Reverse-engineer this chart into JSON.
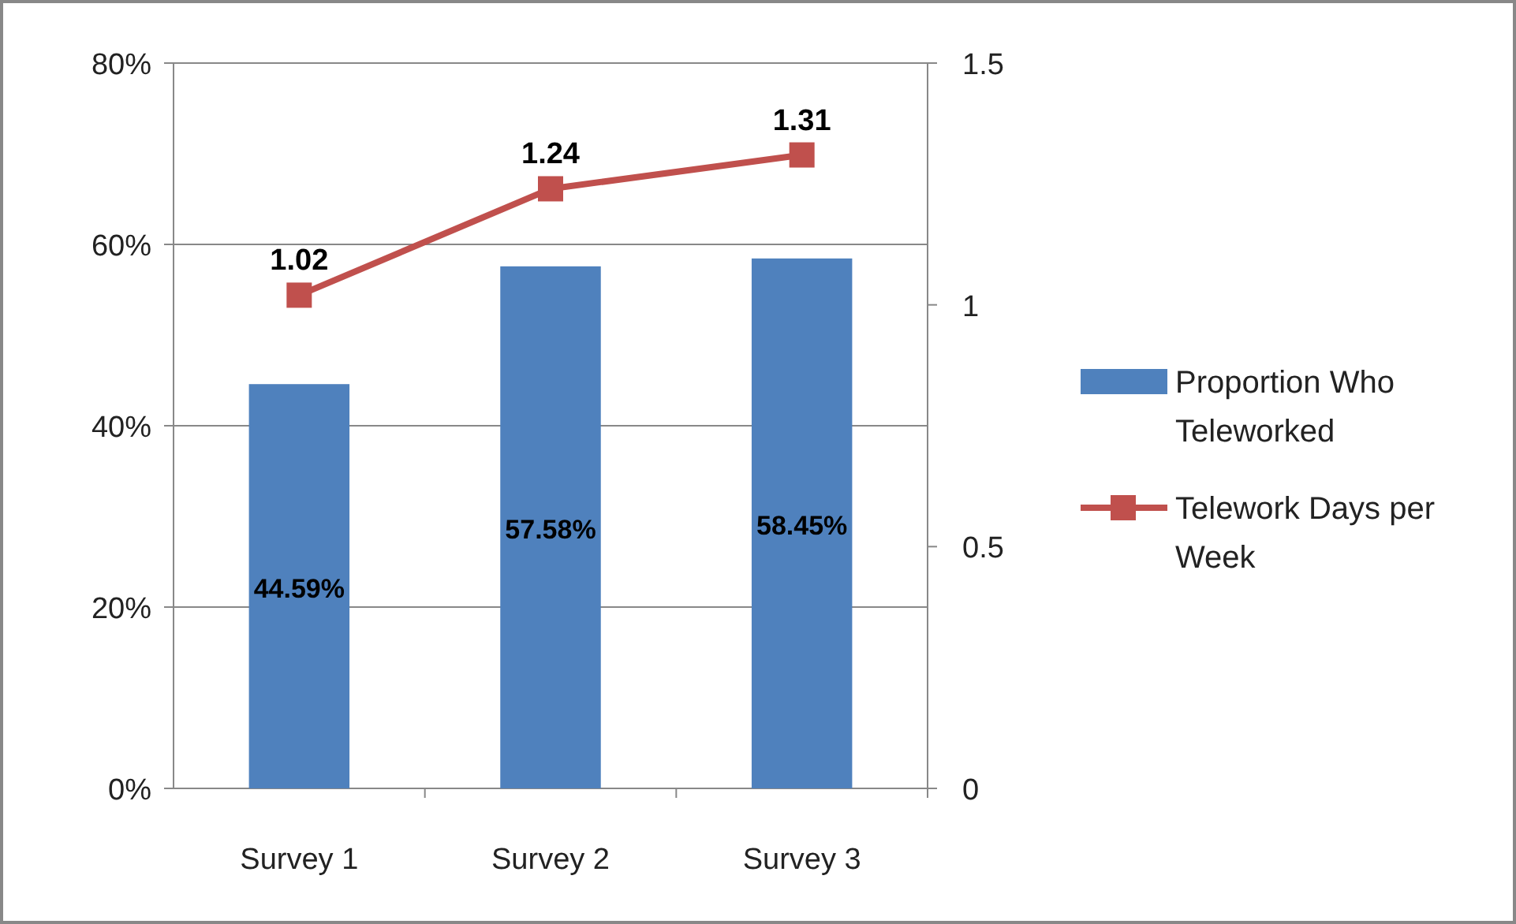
{
  "chart_data": {
    "type": "bar",
    "categories": [
      "Survey 1",
      "Survey 2",
      "Survey 3"
    ],
    "series": [
      {
        "name": "Proportion Who Teleworked",
        "color": "#4f81bd",
        "values": [
          44.59,
          57.58,
          58.45
        ],
        "value_labels": [
          "44.59%",
          "57.58%",
          "58.45%"
        ]
      },
      {
        "name": "Telework Days per Week",
        "type": "line",
        "axis": "y2",
        "color": "#c0504d",
        "marker": "square",
        "values": [
          1.02,
          1.24,
          1.31
        ],
        "value_labels": [
          "1.02",
          "1.24",
          "1.31"
        ]
      }
    ],
    "ylim": [
      0,
      80
    ],
    "yticks": [
      {
        "value": 0,
        "label": "0%"
      },
      {
        "value": 20,
        "label": "20%"
      },
      {
        "value": 40,
        "label": "40%"
      },
      {
        "value": 60,
        "label": "60%"
      },
      {
        "value": 80,
        "label": "80%"
      }
    ],
    "y2lim": [
      0,
      1.5
    ],
    "y2ticks": [
      0,
      0.5,
      1,
      1.5
    ],
    "grid": "y",
    "legend": "right"
  }
}
